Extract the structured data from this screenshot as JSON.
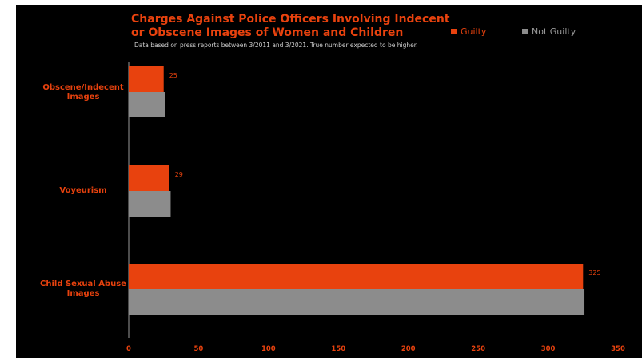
{
  "chart_data": {
    "type": "bar",
    "orientation": "horizontal",
    "title": "Charges Against Police Officers Involving Indecent or Obscene Images of Women and Children",
    "title_lines": [
      "Charges Against Police Officers Involving Indecent",
      "or Obscene Images of Women and Children"
    ],
    "subtitle": "Data based on press reports between 3/2011 and 3/2021. True number expected to be higher.",
    "categories": [
      {
        "name": "Obscene/Indecent Images",
        "lines": [
          "Obscene/Indecent",
          "Images"
        ]
      },
      {
        "name": "Voyeurism",
        "lines": [
          "Voyeurism"
        ]
      },
      {
        "name": "Child Sexual Abuse Images",
        "lines": [
          "Child Sexual Abuse",
          "Images"
        ]
      }
    ],
    "series": [
      {
        "name": "Guilty",
        "color": "#e8420e",
        "values": [
          25,
          29,
          325
        ],
        "labels": [
          "25",
          "29",
          "325"
        ]
      },
      {
        "name": "Not Guilty",
        "color": "#8c8c8c",
        "values": [
          26,
          30,
          326
        ]
      }
    ],
    "xlim": [
      0,
      350
    ],
    "xticks": [
      "0",
      "50",
      "100",
      "150",
      "200",
      "250",
      "300",
      "350"
    ],
    "xtick_values": [
      0,
      50,
      100,
      150,
      200,
      250,
      300,
      350
    ],
    "grid": false,
    "legend_position": "top-right",
    "colors": {
      "background": "#000000",
      "accent": "#e8420e",
      "secondary": "#8c8c8c",
      "subtitle": "#cfcfcf",
      "axis": "#9a9a9a"
    }
  }
}
